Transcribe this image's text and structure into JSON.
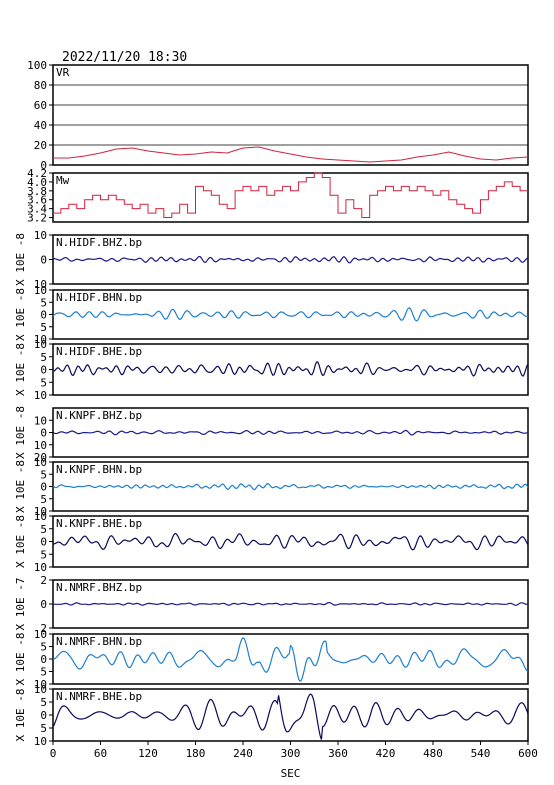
{
  "header": {
    "timestamp": "2022/11/20 18:30"
  },
  "colors": {
    "vr": "#d4213d",
    "mw": "#d4213d",
    "bhz": "#1a1a8c",
    "bhn": "#1e7fd0",
    "bhe": "#0a0a5a",
    "grid": "#000000"
  },
  "chart_data": {
    "type": "line",
    "x": {
      "label": "SEC",
      "range": [
        0,
        600
      ],
      "ticks": [
        0,
        60,
        120,
        180,
        240,
        300,
        360,
        420,
        480,
        540,
        600
      ]
    },
    "panels": [
      {
        "name": "VR",
        "ylim": [
          0,
          100
        ],
        "yticks": [
          0,
          20,
          40,
          60,
          80,
          100
        ],
        "ytick_labels": [
          "0",
          "20",
          "40",
          "60",
          "80",
          "100"
        ],
        "ylabel": "",
        "grid": true,
        "color_key": "vr",
        "step": false,
        "series": {
          "x": [
            0,
            20,
            40,
            60,
            80,
            100,
            120,
            140,
            160,
            180,
            200,
            220,
            240,
            260,
            280,
            300,
            320,
            340,
            360,
            380,
            400,
            420,
            440,
            460,
            480,
            500,
            520,
            540,
            560,
            580,
            600
          ],
          "y": [
            7,
            7,
            9,
            12,
            16,
            17,
            14,
            12,
            10,
            11,
            13,
            12,
            17,
            18,
            14,
            11,
            8,
            6,
            5,
            4,
            3,
            4,
            5,
            8,
            10,
            13,
            9,
            6,
            5,
            7,
            8
          ]
        }
      },
      {
        "name": "Mw",
        "ylim": [
          3.1,
          4.2
        ],
        "yticks": [
          3.2,
          3.4,
          3.6,
          3.8,
          4.0,
          4.2
        ],
        "ytick_labels": [
          "3.2",
          "3.4",
          "3.6",
          "3.8",
          "4.0",
          "4.2"
        ],
        "ylabel": "",
        "grid": false,
        "color_key": "mw",
        "step": true,
        "series": {
          "x": [
            0,
            10,
            20,
            30,
            40,
            50,
            60,
            70,
            80,
            90,
            100,
            110,
            120,
            130,
            140,
            150,
            160,
            170,
            180,
            190,
            200,
            210,
            220,
            230,
            240,
            250,
            260,
            270,
            280,
            290,
            300,
            310,
            320,
            330,
            340,
            350,
            360,
            370,
            380,
            390,
            400,
            410,
            420,
            430,
            440,
            450,
            460,
            470,
            480,
            490,
            500,
            510,
            520,
            530,
            540,
            550,
            560,
            570,
            580,
            590,
            600
          ],
          "y": [
            3.3,
            3.4,
            3.5,
            3.4,
            3.6,
            3.7,
            3.6,
            3.7,
            3.6,
            3.5,
            3.4,
            3.5,
            3.3,
            3.4,
            3.2,
            3.3,
            3.5,
            3.3,
            3.9,
            3.8,
            3.7,
            3.5,
            3.4,
            3.8,
            3.9,
            3.8,
            3.9,
            3.7,
            3.8,
            3.9,
            3.8,
            4.0,
            4.1,
            4.2,
            4.1,
            3.7,
            3.3,
            3.6,
            3.4,
            3.2,
            3.7,
            3.8,
            3.9,
            3.8,
            3.9,
            3.8,
            3.9,
            3.8,
            3.7,
            3.8,
            3.6,
            3.5,
            3.4,
            3.3,
            3.6,
            3.8,
            3.9,
            4.0,
            3.9,
            3.8,
            3.8
          ]
        }
      },
      {
        "name": "N.HIDF.BHZ.bp",
        "ylim": [
          -10,
          10
        ],
        "yticks": [
          -10,
          0,
          10
        ],
        "ytick_labels": [
          "10",
          "0",
          "10"
        ],
        "ylabel": "X 10E -8",
        "color_key": "bhz",
        "wave": {
          "amp": 0.8,
          "seed": 1,
          "freq": 0.35
        }
      },
      {
        "name": "N.HIDF.BHN.bp",
        "ylim": [
          -10,
          10
        ],
        "yticks": [
          -10,
          -5,
          0,
          5,
          10
        ],
        "ytick_labels": [
          "10",
          "5",
          "0",
          "5",
          "10"
        ],
        "ylabel": "X 10E -8",
        "color_key": "bhn",
        "wave": {
          "amp": 1.5,
          "seed": 2,
          "freq": 0.3
        }
      },
      {
        "name": "N.HIDF.BHE.bp",
        "ylim": [
          -10,
          10
        ],
        "yticks": [
          -10,
          -5,
          0,
          5,
          10
        ],
        "ytick_labels": [
          "10",
          "5",
          "0",
          "5",
          "10"
        ],
        "ylabel": "X 10E -8",
        "color_key": "bhe",
        "wave": {
          "amp": 1.8,
          "seed": 3,
          "freq": 0.3
        }
      },
      {
        "name": "N.KNPF.BHZ.bp",
        "ylim": [
          -20,
          20
        ],
        "yticks": [
          -20,
          -10,
          0,
          10
        ],
        "ytick_labels": [
          "20",
          "10",
          "0",
          "10"
        ],
        "ylabel": "X 10E -8",
        "color_key": "bhz",
        "wave": {
          "amp": 1.2,
          "seed": 4,
          "freq": 0.35
        }
      },
      {
        "name": "N.KNPF.BHN.bp",
        "ylim": [
          -10,
          10
        ],
        "yticks": [
          -10,
          -5,
          0,
          5,
          10
        ],
        "ytick_labels": [
          "10",
          "5",
          "0",
          "5",
          "10"
        ],
        "ylabel": "X 10E -8",
        "color_key": "bhn",
        "wave": {
          "amp": 0.8,
          "seed": 5,
          "freq": 0.35
        }
      },
      {
        "name": "N.KNPF.BHE.bp",
        "ylim": [
          -10,
          10
        ],
        "yticks": [
          -10,
          -5,
          0,
          5,
          10
        ],
        "ytick_labels": [
          "10",
          "5",
          "0",
          "5",
          "10"
        ],
        "ylabel": "X 10E -8",
        "color_key": "bhe",
        "wave": {
          "amp": 2.5,
          "seed": 6,
          "freq": 0.22
        }
      },
      {
        "name": "N.NMRF.BHZ.bp",
        "ylim": [
          -2,
          2
        ],
        "yticks": [
          -2,
          0,
          2
        ],
        "ytick_labels": [
          "2",
          "0",
          "2"
        ],
        "ylabel": "X 10E -7",
        "color_key": "bhz",
        "wave": {
          "amp": 0.08,
          "seed": 7,
          "freq": 0.35
        }
      },
      {
        "name": "N.NMRF.BHN.bp",
        "ylim": [
          -10,
          10
        ],
        "yticks": [
          -10,
          -5,
          0,
          5,
          10
        ],
        "ytick_labels": [
          "10",
          "5",
          "0",
          "5",
          "10"
        ],
        "ylabel": "X 10E -8",
        "color_key": "bhn",
        "wave": {
          "amp": 4.5,
          "seed": 8,
          "freq": 0.2,
          "burst": [
            [
              230,
              260,
              1.8
            ],
            [
              300,
              345,
              2.2
            ]
          ]
        }
      },
      {
        "name": "N.NMRF.BHE.bp",
        "ylim": [
          -10,
          10
        ],
        "yticks": [
          -10,
          -5,
          0,
          5,
          10
        ],
        "ytick_labels": [
          "10",
          "5",
          "0",
          "5",
          "10"
        ],
        "ylabel": "X 10E -8",
        "color_key": "bhe",
        "wave": {
          "amp": 4,
          "seed": 9,
          "freq": 0.2,
          "burst": [
            [
              285,
              340,
              2.2
            ]
          ]
        }
      }
    ]
  }
}
